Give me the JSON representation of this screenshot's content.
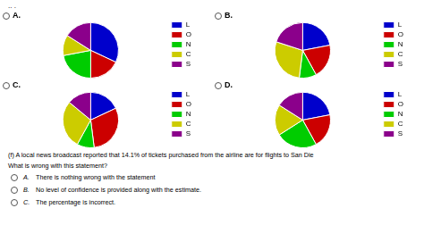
{
  "chart_data": [
    {
      "type": "pie",
      "title": "A.",
      "categories": [
        "L",
        "O",
        "N",
        "C",
        "S"
      ],
      "values": [
        0.32,
        0.18,
        0.22,
        0.12,
        0.16
      ],
      "colors": [
        "#0000cc",
        "#cc0000",
        "#00cc00",
        "#cccc00",
        "#8b008b"
      ],
      "annotations": [
        ".. ."
      ]
    },
    {
      "type": "pie",
      "title": "B.",
      "categories": [
        "L",
        "O",
        "N",
        "C",
        "S"
      ],
      "values": [
        0.22,
        0.2,
        0.1,
        0.28,
        0.2
      ],
      "colors": [
        "#0000cc",
        "#cc0000",
        "#00cc00",
        "#cccc00",
        "#8b008b"
      ]
    },
    {
      "type": "pie",
      "title": "C.",
      "categories": [
        "L",
        "O",
        "N",
        "C",
        "S"
      ],
      "values": [
        0.18,
        0.3,
        0.1,
        0.28,
        0.14
      ],
      "colors": [
        "#0000cc",
        "#cc0000",
        "#00cc00",
        "#cccc00",
        "#8b008b"
      ]
    },
    {
      "type": "pie",
      "title": "D.",
      "categories": [
        "L",
        "O",
        "N",
        "C",
        "S"
      ],
      "values": [
        0.22,
        0.2,
        0.24,
        0.18,
        0.16
      ],
      "colors": [
        "#0000cc",
        "#cc0000",
        "#00cc00",
        "#cccc00",
        "#8b008b"
      ],
      "annotations": [
        "(f) A local news broadcast reported that 14.1% of tickets purchased from the airline are for flights to San Die",
        "What is wrong with this statement?",
        "A.",
        "There is nothing wrong with the statement",
        "B.",
        "No level of confidence is provided along with the estimate.",
        "C.",
        "The percentage is incorrect."
      ]
    }
  ]
}
